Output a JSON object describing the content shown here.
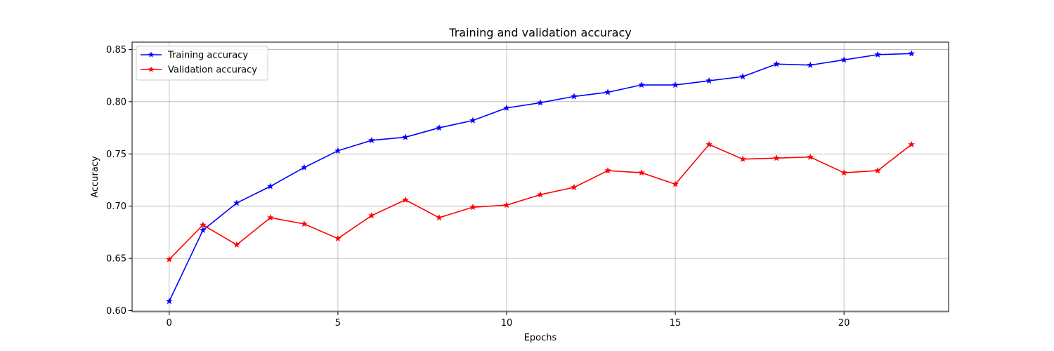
{
  "chart_data": {
    "type": "line",
    "title": "Training and validation accuracy",
    "xlabel": "Epochs",
    "ylabel": "Accuracy",
    "xlim": [
      -1.1,
      23.1
    ],
    "ylim": [
      0.599,
      0.857
    ],
    "xticks": [
      0,
      5,
      10,
      15,
      20
    ],
    "yticks": [
      0.6,
      0.65,
      0.7,
      0.75,
      0.8,
      0.85
    ],
    "ytick_labels": [
      "0.60",
      "0.65",
      "0.70",
      "0.75",
      "0.80",
      "0.85"
    ],
    "grid": true,
    "legend_position": "top-left",
    "x": [
      0,
      1,
      2,
      3,
      4,
      5,
      6,
      7,
      8,
      9,
      10,
      11,
      12,
      13,
      14,
      15,
      16,
      17,
      18,
      19,
      20,
      21,
      22
    ],
    "series": [
      {
        "name": "Training accuracy",
        "color": "#0000ff",
        "marker": "star",
        "values": [
          0.609,
          0.677,
          0.703,
          0.719,
          0.737,
          0.753,
          0.763,
          0.766,
          0.775,
          0.782,
          0.794,
          0.799,
          0.805,
          0.809,
          0.816,
          0.816,
          0.82,
          0.824,
          0.836,
          0.835,
          0.84,
          0.845,
          0.846
        ]
      },
      {
        "name": "Validation accuracy",
        "color": "#ff0000",
        "marker": "star",
        "values": [
          0.649,
          0.682,
          0.663,
          0.689,
          0.683,
          0.669,
          0.691,
          0.706,
          0.689,
          0.699,
          0.701,
          0.711,
          0.718,
          0.734,
          0.732,
          0.721,
          0.759,
          0.745,
          0.746,
          0.747,
          0.732,
          0.734,
          0.759
        ]
      }
    ]
  }
}
